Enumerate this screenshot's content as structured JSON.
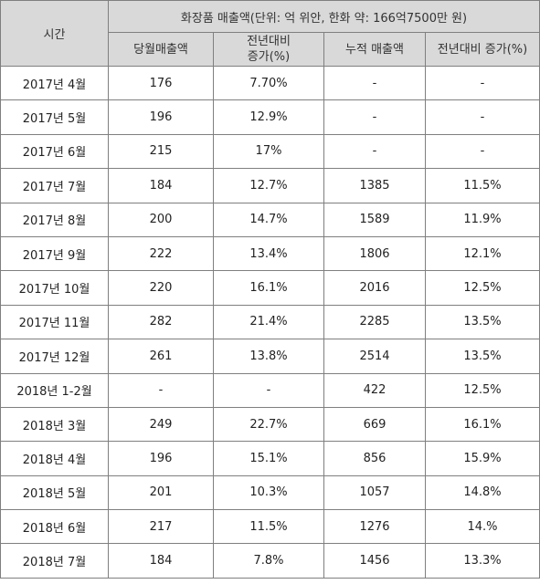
{
  "table": {
    "time_header": "시간",
    "group_header": "화장품 매출액(단위: 억 위안, 한화 약: 166억7500만 원)",
    "sub_headers": {
      "monthly_sales": "당월매출액",
      "yoy_growth_line1": "전년대비",
      "yoy_growth_line2": "증가(%)",
      "cumulative_sales": "누적 매출액",
      "cumulative_yoy_growth": "전년대비 증가(%)"
    },
    "rows": [
      {
        "period": "2017년 4월",
        "monthly": "176",
        "yoy": "7.70%",
        "cumulative": "-",
        "cum_yoy": "-"
      },
      {
        "period": "2017년 5월",
        "monthly": "196",
        "yoy": "12.9%",
        "cumulative": "-",
        "cum_yoy": "-"
      },
      {
        "period": "2017년 6월",
        "monthly": "215",
        "yoy": "17%",
        "cumulative": "-",
        "cum_yoy": "-"
      },
      {
        "period": "2017년 7월",
        "monthly": "184",
        "yoy": "12.7%",
        "cumulative": "1385",
        "cum_yoy": "11.5%"
      },
      {
        "period": "2017년 8월",
        "monthly": "200",
        "yoy": "14.7%",
        "cumulative": "1589",
        "cum_yoy": "11.9%"
      },
      {
        "period": "2017년 9월",
        "monthly": "222",
        "yoy": "13.4%",
        "cumulative": "1806",
        "cum_yoy": "12.1%"
      },
      {
        "period": "2017년 10월",
        "monthly": "220",
        "yoy": "16.1%",
        "cumulative": "2016",
        "cum_yoy": "12.5%"
      },
      {
        "period": "2017년 11월",
        "monthly": "282",
        "yoy": "21.4%",
        "cumulative": "2285",
        "cum_yoy": "13.5%"
      },
      {
        "period": "2017년 12월",
        "monthly": "261",
        "yoy": "13.8%",
        "cumulative": "2514",
        "cum_yoy": "13.5%"
      },
      {
        "period": "2018년 1-2월",
        "monthly": "-",
        "yoy": "-",
        "cumulative": "422",
        "cum_yoy": "12.5%"
      },
      {
        "period": "2018년 3월",
        "monthly": "249",
        "yoy": "22.7%",
        "cumulative": "669",
        "cum_yoy": "16.1%"
      },
      {
        "period": "2018년 4월",
        "monthly": "196",
        "yoy": "15.1%",
        "cumulative": "856",
        "cum_yoy": "15.9%"
      },
      {
        "period": "2018년 5월",
        "monthly": "201",
        "yoy": "10.3%",
        "cumulative": "1057",
        "cum_yoy": "14.8%"
      },
      {
        "period": "2018년 6월",
        "monthly": "217",
        "yoy": "11.5%",
        "cumulative": "1276",
        "cum_yoy": "14.%"
      },
      {
        "period": "2018년 7월",
        "monthly": "184",
        "yoy": "7.8%",
        "cumulative": "1456",
        "cum_yoy": "13.3%"
      }
    ]
  },
  "colors": {
    "header_bg": "#d9d9d9",
    "border": "#7f7f7f"
  }
}
